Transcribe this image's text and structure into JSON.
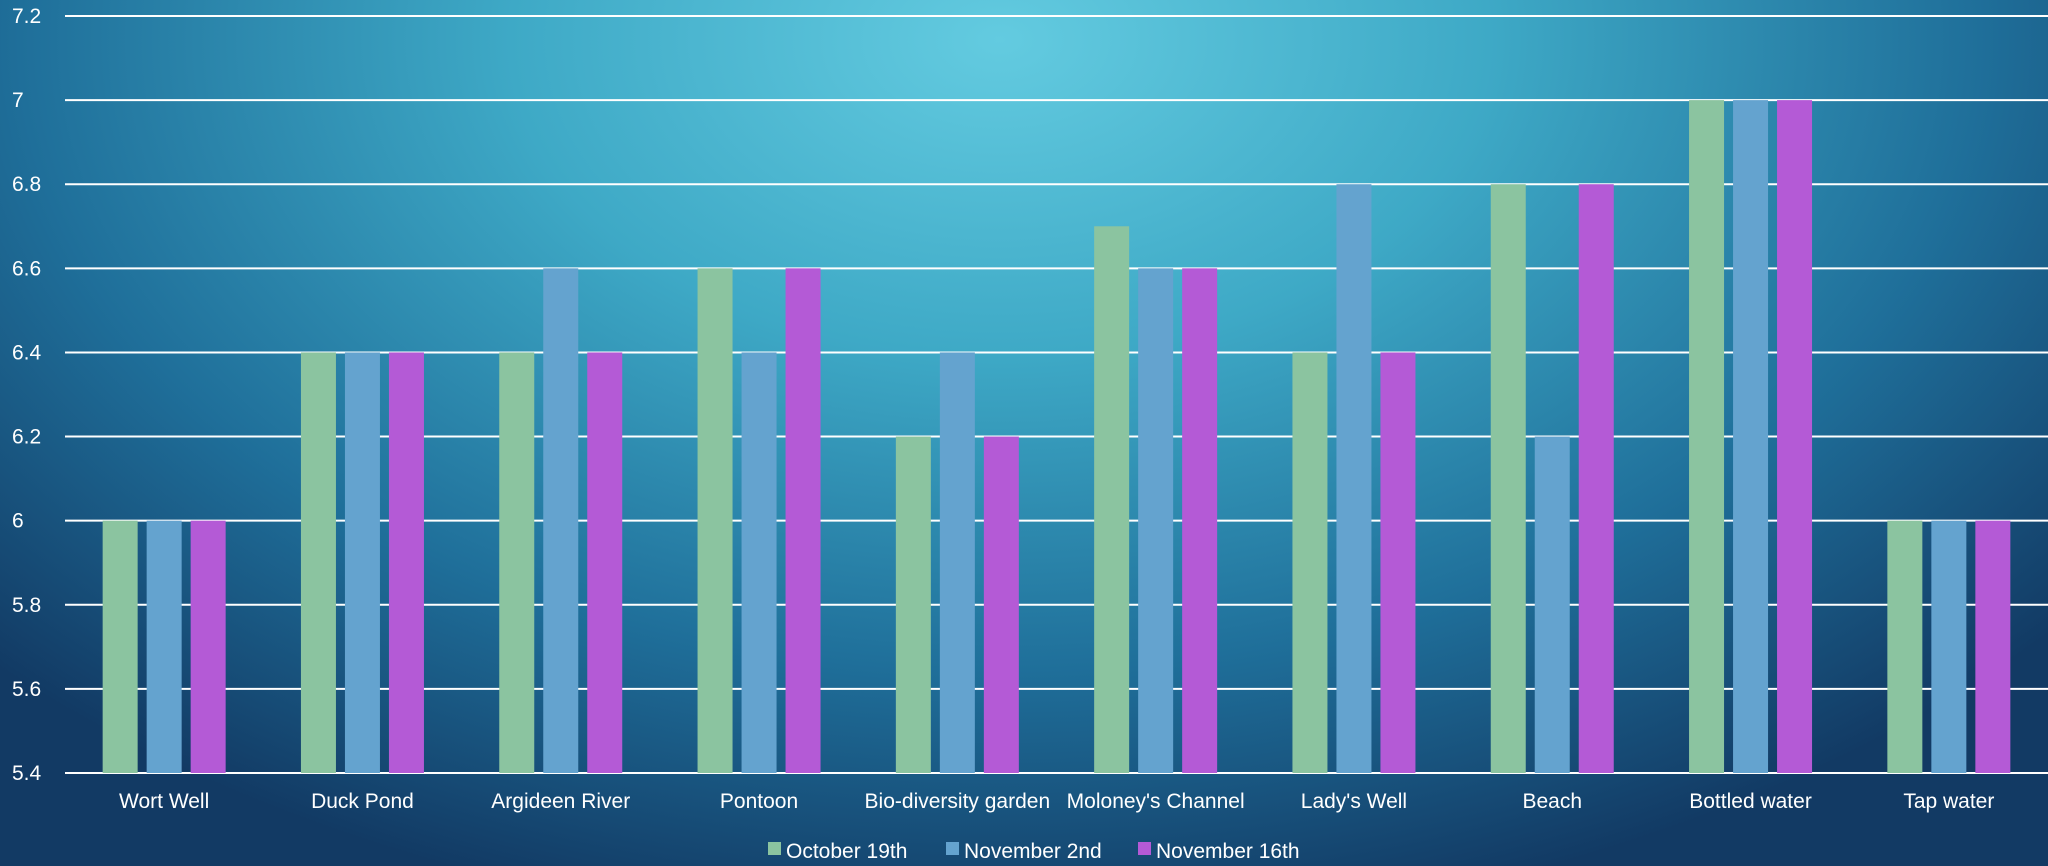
{
  "chart_data": {
    "type": "bar",
    "categories": [
      "Wort Well",
      "Duck Pond",
      "Argideen River",
      "Pontoon",
      "Bio-diversity garden",
      "Moloney's Channel",
      "Lady's Well",
      "Beach",
      "Bottled water",
      "Tap water"
    ],
    "series": [
      {
        "name": "October 19th",
        "color": "#8bc4a0",
        "values": [
          6.0,
          6.4,
          6.4,
          6.6,
          6.2,
          6.7,
          6.4,
          6.8,
          7.0,
          6.0
        ]
      },
      {
        "name": "November 2nd",
        "color": "#64a3cf",
        "values": [
          6.0,
          6.4,
          6.6,
          6.4,
          6.4,
          6.6,
          6.8,
          6.2,
          7.0,
          6.0
        ]
      },
      {
        "name": "November 16th",
        "color": "#b45ad6",
        "values": [
          6.0,
          6.4,
          6.4,
          6.6,
          6.2,
          6.6,
          6.4,
          6.8,
          7.0,
          6.0
        ]
      }
    ],
    "ylim": [
      5.4,
      7.2
    ],
    "yticks": [
      "5.4",
      "5.6",
      "5.8",
      "6",
      "6.2",
      "6.4",
      "6.6",
      "6.8",
      "7",
      "7.2"
    ],
    "grid": true,
    "legend": "bottom-center",
    "title": "",
    "xlabel": "",
    "ylabel": ""
  }
}
